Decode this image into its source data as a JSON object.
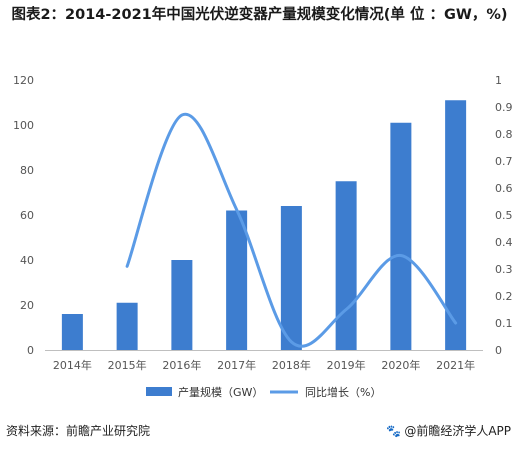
{
  "title": "图表2：2014-2021年中国光伏逆变器产量规模变化情况(单 位 ：GW，%)",
  "colors": {
    "bar": "#3d7dcf",
    "line": "#5b9be6",
    "axis_text": "#555555",
    "axis_line": "#bfbfbf"
  },
  "chart_data": {
    "type": "bar",
    "categories": [
      "2014年",
      "2015年",
      "2016年",
      "2017年",
      "2018年",
      "2019年",
      "2020年",
      "2021年"
    ],
    "series": [
      {
        "name": "产量规模（GW）",
        "type": "bar",
        "axis": "left",
        "values": [
          16,
          21,
          40,
          62,
          64,
          75,
          101,
          111
        ]
      },
      {
        "name": "同比增长（%）",
        "type": "line",
        "smooth": true,
        "axis": "right",
        "values": [
          null,
          0.31,
          0.87,
          0.52,
          0.03,
          0.15,
          0.35,
          0.1
        ]
      }
    ],
    "y_left": {
      "lim": [
        0,
        120
      ],
      "ticks": [
        "0",
        "20",
        "40",
        "60",
        "80",
        "100",
        "120"
      ]
    },
    "y_right": {
      "lim": [
        0,
        1
      ],
      "ticks": [
        "0",
        "0.1",
        "0.2",
        "0.3",
        "0.4",
        "0.5",
        "0.6",
        "0.7",
        "0.8",
        "0.9",
        "1"
      ]
    },
    "xlabel": "",
    "ylabel": "",
    "legend_position": "bottom",
    "grid": false
  },
  "footer": {
    "source": "资料来源：前瞻产业研究院",
    "brand": "@前瞻经济学人APP",
    "brand_icon": "paw-icon"
  }
}
